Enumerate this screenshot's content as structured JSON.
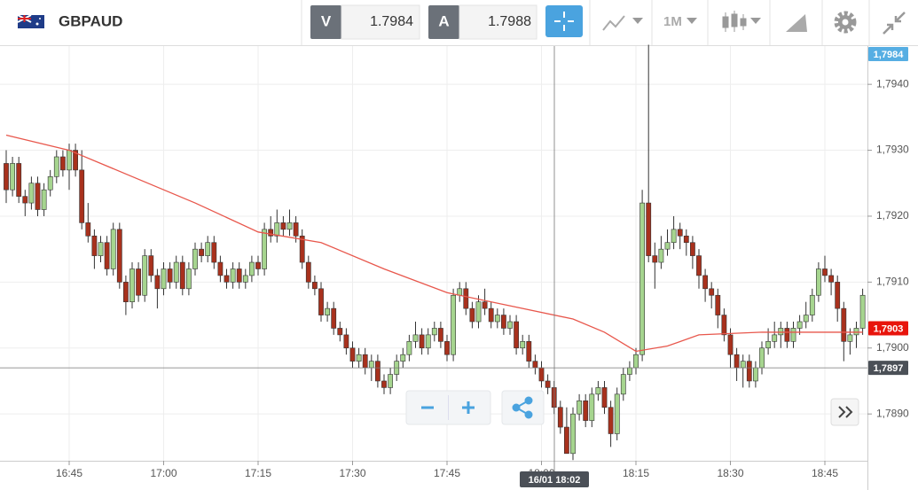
{
  "toolbar": {
    "symbol": "GBPAUD",
    "bid_label": "V",
    "bid": "1.7984",
    "ask_label": "A",
    "ask": "1.7988",
    "timeframe": "1M"
  },
  "chart_data": {
    "type": "candlestick",
    "categories": [
      "16:35",
      "16:36",
      "16:37",
      "16:38",
      "16:39",
      "16:40",
      "16:41",
      "16:42",
      "16:43",
      "16:44",
      "16:45",
      "16:46",
      "16:47",
      "16:48",
      "16:49",
      "16:50",
      "16:51",
      "16:52",
      "16:53",
      "16:54",
      "16:55",
      "16:56",
      "16:57",
      "16:58",
      "16:59",
      "17:00",
      "17:01",
      "17:02",
      "17:03",
      "17:04",
      "17:05",
      "17:06",
      "17:07",
      "17:08",
      "17:09",
      "17:10",
      "17:11",
      "17:12",
      "17:13",
      "17:14",
      "17:15",
      "17:16",
      "17:17",
      "17:18",
      "17:19",
      "17:20",
      "17:21",
      "17:22",
      "17:23",
      "17:24",
      "17:25",
      "17:26",
      "17:27",
      "17:28",
      "17:29",
      "17:30",
      "17:31",
      "17:32",
      "17:33",
      "17:34",
      "17:35",
      "17:36",
      "17:37",
      "17:38",
      "17:39",
      "17:40",
      "17:41",
      "17:42",
      "17:43",
      "17:44",
      "17:45",
      "17:46",
      "17:47",
      "17:48",
      "17:49",
      "17:50",
      "17:51",
      "17:52",
      "17:53",
      "17:54",
      "17:55",
      "17:56",
      "17:57",
      "17:58",
      "17:59",
      "18:00",
      "18:01",
      "18:02",
      "18:03",
      "18:04",
      "18:05",
      "18:06",
      "18:07",
      "18:08",
      "18:09",
      "18:10",
      "18:11",
      "18:12",
      "18:13",
      "18:14",
      "18:15",
      "18:16",
      "18:17",
      "18:18",
      "18:19",
      "18:20",
      "18:21",
      "18:22",
      "18:23",
      "18:24",
      "18:25",
      "18:26",
      "18:27",
      "18:28",
      "18:29",
      "18:30",
      "18:31",
      "18:32",
      "18:33",
      "18:34",
      "18:35",
      "18:36",
      "18:37",
      "18:38",
      "18:39",
      "18:40",
      "18:41",
      "18:42",
      "18:43",
      "18:44",
      "18:45",
      "18:46",
      "18:47",
      "18:48",
      "18:49",
      "18:50",
      "18:51"
    ],
    "ohlc": [
      [
        1.7928,
        1.793,
        1.7922,
        1.7924
      ],
      [
        1.7924,
        1.7929,
        1.7923,
        1.7928
      ],
      [
        1.7928,
        1.7929,
        1.7922,
        1.7923
      ],
      [
        1.7923,
        1.7924,
        1.792,
        1.7922
      ],
      [
        1.7922,
        1.7926,
        1.7921,
        1.7925
      ],
      [
        1.7925,
        1.7926,
        1.792,
        1.7921
      ],
      [
        1.7921,
        1.7925,
        1.792,
        1.7924
      ],
      [
        1.7924,
        1.7927,
        1.7923,
        1.7926
      ],
      [
        1.7926,
        1.793,
        1.7925,
        1.7929
      ],
      [
        1.7929,
        1.793,
        1.7926,
        1.7927
      ],
      [
        1.7927,
        1.7931,
        1.7924,
        1.793
      ],
      [
        1.793,
        1.7931,
        1.7926,
        1.7927
      ],
      [
        1.7927,
        1.793,
        1.7918,
        1.7919
      ],
      [
        1.7919,
        1.7922,
        1.7916,
        1.7917
      ],
      [
        1.7917,
        1.7918,
        1.7912,
        1.7914
      ],
      [
        1.7914,
        1.7917,
        1.7913,
        1.7916
      ],
      [
        1.7916,
        1.7917,
        1.7911,
        1.7912
      ],
      [
        1.7912,
        1.7919,
        1.7911,
        1.7918
      ],
      [
        1.7918,
        1.7919,
        1.7909,
        1.791
      ],
      [
        1.791,
        1.7911,
        1.7905,
        1.7907
      ],
      [
        1.7907,
        1.7913,
        1.7906,
        1.7912
      ],
      [
        1.7912,
        1.7913,
        1.7907,
        1.7908
      ],
      [
        1.7908,
        1.7915,
        1.7907,
        1.7914
      ],
      [
        1.7914,
        1.7915,
        1.791,
        1.7911
      ],
      [
        1.7911,
        1.7912,
        1.7906,
        1.7909
      ],
      [
        1.7909,
        1.7913,
        1.7908,
        1.7912
      ],
      [
        1.7912,
        1.7913,
        1.7909,
        1.791
      ],
      [
        1.791,
        1.7914,
        1.7909,
        1.7913
      ],
      [
        1.7913,
        1.7914,
        1.7908,
        1.7909
      ],
      [
        1.7909,
        1.7913,
        1.7908,
        1.7912
      ],
      [
        1.7912,
        1.7916,
        1.7911,
        1.7915
      ],
      [
        1.7915,
        1.7916,
        1.7913,
        1.7914
      ],
      [
        1.7914,
        1.7917,
        1.7913,
        1.7916
      ],
      [
        1.7916,
        1.7917,
        1.7912,
        1.7913
      ],
      [
        1.7913,
        1.7914,
        1.791,
        1.7911
      ],
      [
        1.7911,
        1.7912,
        1.7909,
        1.791
      ],
      [
        1.791,
        1.7913,
        1.7909,
        1.7912
      ],
      [
        1.7912,
        1.7913,
        1.7909,
        1.791
      ],
      [
        1.791,
        1.7912,
        1.7909,
        1.7911
      ],
      [
        1.7911,
        1.7914,
        1.791,
        1.7913
      ],
      [
        1.7913,
        1.7914,
        1.7911,
        1.7912
      ],
      [
        1.7912,
        1.7919,
        1.7911,
        1.7918
      ],
      [
        1.7918,
        1.792,
        1.7916,
        1.7917
      ],
      [
        1.7917,
        1.7921,
        1.7916,
        1.7919
      ],
      [
        1.7919,
        1.792,
        1.7917,
        1.7918
      ],
      [
        1.7918,
        1.7921,
        1.7917,
        1.7919
      ],
      [
        1.7919,
        1.792,
        1.7916,
        1.7917
      ],
      [
        1.7917,
        1.7918,
        1.7912,
        1.7913
      ],
      [
        1.7913,
        1.7914,
        1.7909,
        1.791
      ],
      [
        1.791,
        1.7911,
        1.7908,
        1.7909
      ],
      [
        1.7909,
        1.791,
        1.7904,
        1.7905
      ],
      [
        1.7905,
        1.7907,
        1.7904,
        1.7906
      ],
      [
        1.7906,
        1.7907,
        1.7902,
        1.7903
      ],
      [
        1.7903,
        1.7904,
        1.7901,
        1.7902
      ],
      [
        1.7902,
        1.7903,
        1.7899,
        1.79
      ],
      [
        1.79,
        1.7901,
        1.7897,
        1.7898
      ],
      [
        1.7898,
        1.79,
        1.7897,
        1.7899
      ],
      [
        1.7899,
        1.79,
        1.7896,
        1.7897
      ],
      [
        1.7897,
        1.7899,
        1.7895,
        1.7898
      ],
      [
        1.7898,
        1.7899,
        1.7894,
        1.7895
      ],
      [
        1.7895,
        1.7896,
        1.7893,
        1.7894
      ],
      [
        1.7894,
        1.7897,
        1.7893,
        1.7896
      ],
      [
        1.7896,
        1.7899,
        1.7895,
        1.7898
      ],
      [
        1.7898,
        1.79,
        1.7897,
        1.7899
      ],
      [
        1.7899,
        1.7902,
        1.7898,
        1.7901
      ],
      [
        1.7901,
        1.7904,
        1.79,
        1.7902
      ],
      [
        1.7902,
        1.7903,
        1.7899,
        1.79
      ],
      [
        1.79,
        1.7903,
        1.7899,
        1.7902
      ],
      [
        1.7902,
        1.7904,
        1.7901,
        1.7903
      ],
      [
        1.7903,
        1.7904,
        1.79,
        1.7901
      ],
      [
        1.7901,
        1.7902,
        1.7898,
        1.7899
      ],
      [
        1.7899,
        1.7909,
        1.7898,
        1.7908
      ],
      [
        1.7908,
        1.791,
        1.7907,
        1.7909
      ],
      [
        1.7909,
        1.791,
        1.7905,
        1.7906
      ],
      [
        1.7906,
        1.7907,
        1.7903,
        1.7904
      ],
      [
        1.7904,
        1.7908,
        1.7903,
        1.7907
      ],
      [
        1.7907,
        1.7909,
        1.7905,
        1.7906
      ],
      [
        1.7906,
        1.7907,
        1.7903,
        1.7904
      ],
      [
        1.7904,
        1.7906,
        1.7903,
        1.7905
      ],
      [
        1.7905,
        1.7906,
        1.7902,
        1.7903
      ],
      [
        1.7903,
        1.7905,
        1.7902,
        1.7904
      ],
      [
        1.7904,
        1.7905,
        1.7899,
        1.79
      ],
      [
        1.79,
        1.7902,
        1.7899,
        1.7901
      ],
      [
        1.7901,
        1.7902,
        1.7897,
        1.7898
      ],
      [
        1.7898,
        1.7899,
        1.7896,
        1.7897
      ],
      [
        1.7897,
        1.7898,
        1.7894,
        1.7895
      ],
      [
        1.7895,
        1.7896,
        1.7893,
        1.7894
      ],
      [
        1.7894,
        1.7895,
        1.789,
        1.7891
      ],
      [
        1.7891,
        1.7892,
        1.7887,
        1.7888
      ],
      [
        1.7888,
        1.7891,
        1.7884,
        1.7884
      ],
      [
        1.7884,
        1.7891,
        1.7883,
        1.789
      ],
      [
        1.789,
        1.7893,
        1.7889,
        1.7892
      ],
      [
        1.7892,
        1.7893,
        1.7888,
        1.7889
      ],
      [
        1.7889,
        1.7894,
        1.7888,
        1.7893
      ],
      [
        1.7893,
        1.7895,
        1.7892,
        1.7894
      ],
      [
        1.7894,
        1.7895,
        1.789,
        1.7891
      ],
      [
        1.7891,
        1.7892,
        1.7885,
        1.7887
      ],
      [
        1.7887,
        1.7894,
        1.7886,
        1.7893
      ],
      [
        1.7893,
        1.7897,
        1.7892,
        1.7896
      ],
      [
        1.7896,
        1.7898,
        1.7895,
        1.7897
      ],
      [
        1.7897,
        1.79,
        1.7896,
        1.7899
      ],
      [
        1.7899,
        1.7924,
        1.7898,
        1.7922
      ],
      [
        1.7922,
        1.7946,
        1.7913,
        1.7914
      ],
      [
        1.7914,
        1.7916,
        1.7909,
        1.7913
      ],
      [
        1.7913,
        1.7917,
        1.7912,
        1.7915
      ],
      [
        1.7915,
        1.7918,
        1.7914,
        1.7916
      ],
      [
        1.7916,
        1.792,
        1.7915,
        1.7918
      ],
      [
        1.7918,
        1.7919,
        1.7915,
        1.7917
      ],
      [
        1.7917,
        1.7918,
        1.7914,
        1.7916
      ],
      [
        1.7916,
        1.7917,
        1.7912,
        1.7914
      ],
      [
        1.7914,
        1.7915,
        1.7909,
        1.7911
      ],
      [
        1.7911,
        1.7912,
        1.7907,
        1.7909
      ],
      [
        1.7909,
        1.791,
        1.7906,
        1.7908
      ],
      [
        1.7908,
        1.7909,
        1.7903,
        1.7905
      ],
      [
        1.7905,
        1.7906,
        1.7901,
        1.7902
      ],
      [
        1.7902,
        1.7903,
        1.7897,
        1.7899
      ],
      [
        1.7899,
        1.79,
        1.7895,
        1.7897
      ],
      [
        1.7897,
        1.7899,
        1.7894,
        1.7898
      ],
      [
        1.7898,
        1.7899,
        1.7894,
        1.7895
      ],
      [
        1.7895,
        1.7898,
        1.7894,
        1.7897
      ],
      [
        1.7897,
        1.7901,
        1.7896,
        1.79
      ],
      [
        1.79,
        1.7903,
        1.7899,
        1.7901
      ],
      [
        1.7901,
        1.7904,
        1.79,
        1.7902
      ],
      [
        1.7902,
        1.7904,
        1.79,
        1.7903
      ],
      [
        1.7903,
        1.7904,
        1.79,
        1.7901
      ],
      [
        1.7901,
        1.7904,
        1.79,
        1.7903
      ],
      [
        1.7903,
        1.7905,
        1.7902,
        1.7904
      ],
      [
        1.7904,
        1.7907,
        1.7903,
        1.7905
      ],
      [
        1.7905,
        1.7909,
        1.7904,
        1.7908
      ],
      [
        1.7908,
        1.7913,
        1.7907,
        1.7912
      ],
      [
        1.7912,
        1.7914,
        1.791,
        1.7911
      ],
      [
        1.7911,
        1.7912,
        1.7908,
        1.791
      ],
      [
        1.791,
        1.7911,
        1.7904,
        1.7906
      ],
      [
        1.7906,
        1.7907,
        1.7898,
        1.7901
      ],
      [
        1.7901,
        1.7903,
        1.7899,
        1.7902
      ],
      [
        1.7902,
        1.7904,
        1.79,
        1.7903
      ],
      [
        1.7903,
        1.7909,
        1.7902,
        1.7908
      ]
    ],
    "colors": {
      "up": "#a6d58f",
      "down": "#a8311d"
    },
    "ma": {
      "color": "#e8574c",
      "x": [
        "16:35",
        "16:45",
        "16:55",
        "17:05",
        "17:15",
        "17:25",
        "17:35",
        "17:45",
        "17:55",
        "18:05",
        "18:10",
        "18:15",
        "18:20",
        "18:25",
        "18:35",
        "18:45",
        "18:51"
      ],
      "values": [
        1.79323,
        1.793,
        1.7926,
        1.7922,
        1.79176,
        1.7916,
        1.7912,
        1.79084,
        1.79064,
        1.79044,
        1.79024,
        1.78995,
        1.79003,
        1.7902,
        1.79024,
        1.79024,
        1.79024
      ]
    },
    "ylim": [
      1.78829,
      1.79458
    ],
    "yticks": [
      {
        "value": 1.789,
        "label": "1,7890"
      },
      {
        "value": 1.79,
        "label": "1,7900"
      },
      {
        "value": 1.791,
        "label": "1,7910"
      },
      {
        "value": 1.792,
        "label": "1,7920"
      },
      {
        "value": 1.793,
        "label": "1,7930"
      },
      {
        "value": 1.794,
        "label": "1,7940"
      }
    ],
    "xticks": [
      "16:45",
      "17:00",
      "17:15",
      "17:30",
      "17:45",
      "18:00",
      "18:15",
      "18:30",
      "18:45"
    ],
    "grid": true,
    "price_tags": [
      {
        "value": 1.7984,
        "label": "1,7984",
        "color": "#56aee3"
      },
      {
        "value": 1.7903,
        "label": "1,7903",
        "color": "#e8140c"
      },
      {
        "value": 1.7897,
        "label": "1,7897",
        "color": "#4b5057"
      }
    ],
    "crosshair_label": "16/01 18:02"
  }
}
